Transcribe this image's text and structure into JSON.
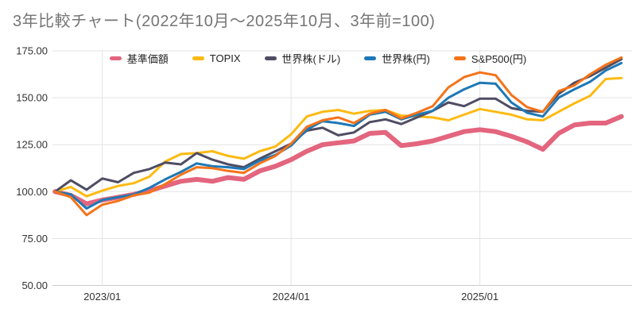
{
  "title": "3年比較チャート(2022年10月〜2025年10月、3年前=100)",
  "colors": {
    "background": "#ffffff",
    "title_text": "#757575",
    "axis_text": "#333333",
    "gridline": "#e3e3e3",
    "axis_line": "#cccccc"
  },
  "chart_data": {
    "type": "line",
    "title": "3年比較チャート(2022年10月〜2025年10月、3年前=100)",
    "legend_position": "top",
    "grid": true,
    "ylim": [
      50,
      175
    ],
    "yticks": [
      175,
      150,
      125,
      100,
      75,
      50
    ],
    "ytick_labels": [
      "175.00",
      "150.00",
      "125.00",
      "100.00",
      "75.00",
      "50.00"
    ],
    "xtick_labels": [
      "2023/01",
      "2024/01",
      "2025/01"
    ],
    "xtick_month_indexes": [
      3,
      15,
      27
    ],
    "x": [
      "2022/10",
      "2022/11",
      "2022/12",
      "2023/01",
      "2023/02",
      "2023/03",
      "2023/04",
      "2023/05",
      "2023/06",
      "2023/07",
      "2023/08",
      "2023/09",
      "2023/10",
      "2023/11",
      "2023/12",
      "2024/01",
      "2024/02",
      "2024/03",
      "2024/04",
      "2024/05",
      "2024/06",
      "2024/07",
      "2024/08",
      "2024/09",
      "2024/10",
      "2024/11",
      "2024/12",
      "2025/01",
      "2025/02",
      "2025/03",
      "2025/04",
      "2025/05",
      "2025/06",
      "2025/07",
      "2025/08",
      "2025/09",
      "2025/10"
    ],
    "series": [
      {
        "name": "基準価額",
        "color": "#e3657e",
        "line_width": 6,
        "values": [
          100,
          98,
          93.5,
          95.5,
          97,
          98.5,
          100.5,
          103,
          105.5,
          106.5,
          105.5,
          107.5,
          106.5,
          111,
          113.5,
          117,
          121.5,
          125,
          126,
          127,
          131,
          131.5,
          124.5,
          125.5,
          127,
          129.5,
          132,
          133,
          132,
          129.5,
          126.5,
          122.5,
          131,
          135.5,
          136.5,
          136.5,
          140
        ]
      },
      {
        "name": "TOPIX",
        "color": "#fcba12",
        "line_width": 3,
        "values": [
          100,
          102.5,
          97.5,
          100.5,
          103,
          104.5,
          108,
          116,
          120,
          120.5,
          121.5,
          119,
          117.5,
          121.5,
          124,
          130.5,
          140,
          142.5,
          143.5,
          141.5,
          143,
          143.5,
          140.5,
          140,
          139.5,
          138,
          141,
          144,
          142.5,
          141,
          138.5,
          138,
          142.5,
          147,
          151,
          160,
          160.5
        ]
      },
      {
        "name": "世界株(ドル)",
        "color": "#4f4d63",
        "line_width": 3,
        "values": [
          100,
          106,
          101,
          107,
          105,
          110,
          112,
          115.5,
          114.5,
          120.5,
          117,
          114.5,
          113,
          117.5,
          121.5,
          125.5,
          132.5,
          134,
          130,
          131.5,
          137,
          138.5,
          136,
          139.5,
          143,
          147.5,
          145.5,
          149.5,
          149.5,
          144.5,
          143,
          142.5,
          152,
          158,
          161.5,
          166,
          170.5
        ]
      },
      {
        "name": "世界株(円)",
        "color": "#1e78b5",
        "line_width": 3,
        "values": [
          100,
          98.5,
          91,
          95.5,
          97,
          98.5,
          102,
          106.5,
          110.5,
          115,
          113.5,
          113,
          112,
          116.5,
          119.5,
          124.5,
          133,
          137.5,
          136.5,
          135,
          141,
          142.5,
          138.5,
          141,
          143,
          150,
          154.5,
          158,
          157.5,
          147.5,
          142,
          140,
          150,
          154.5,
          158.5,
          164.5,
          168.5
        ]
      },
      {
        "name": "S&P500(円)",
        "color": "#f4731a",
        "line_width": 3,
        "values": [
          100,
          97,
          87.5,
          93,
          95,
          98,
          99.5,
          104,
          109,
          113,
          112.5,
          111,
          110,
          115,
          119,
          125.5,
          134.5,
          138,
          139.5,
          136.5,
          141.5,
          143.5,
          139,
          142,
          145.5,
          155.5,
          161,
          163.5,
          162,
          151.5,
          145,
          142.5,
          153.5,
          156.5,
          162.5,
          167.5,
          171.5
        ]
      }
    ]
  }
}
